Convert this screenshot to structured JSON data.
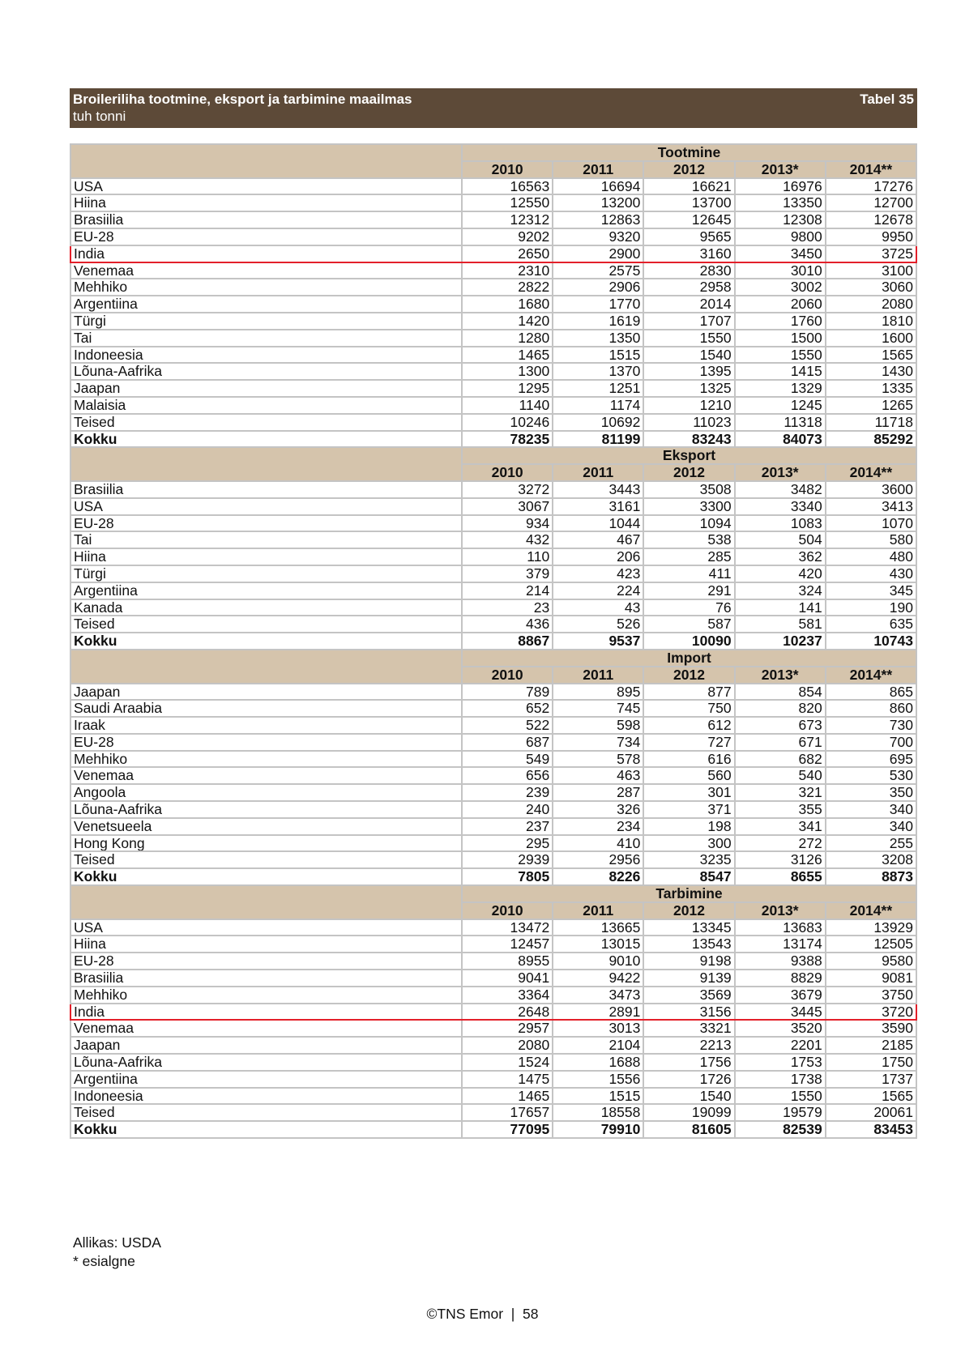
{
  "header": {
    "title": "Broileriliha tootmine, eksport ja tarbimine maailmas",
    "subtitle": "tuh tonni",
    "table_number": "Tabel 35"
  },
  "highlight_color": "#e3202a",
  "years": [
    "2010",
    "2011",
    "2012",
    "2013*",
    "2014**"
  ],
  "sections": [
    {
      "title": "Tootmine",
      "rows": [
        {
          "label": "USA",
          "values": [
            "16563",
            "16694",
            "16621",
            "16976",
            "17276"
          ]
        },
        {
          "label": "Hiina",
          "values": [
            "12550",
            "13200",
            "13700",
            "13350",
            "12700"
          ]
        },
        {
          "label": "Brasiilia",
          "values": [
            "12312",
            "12863",
            "12645",
            "12308",
            "12678"
          ]
        },
        {
          "label": "EU-28",
          "values": [
            "9202",
            "9320",
            "9565",
            "9800",
            "9950"
          ]
        },
        {
          "label": "India",
          "values": [
            "2650",
            "2900",
            "3160",
            "3450",
            "3725"
          ],
          "highlighted": true
        },
        {
          "label": "Venemaa",
          "values": [
            "2310",
            "2575",
            "2830",
            "3010",
            "3100"
          ]
        },
        {
          "label": "Mehhiko",
          "values": [
            "2822",
            "2906",
            "2958",
            "3002",
            "3060"
          ]
        },
        {
          "label": "Argentiina",
          "values": [
            "1680",
            "1770",
            "2014",
            "2060",
            "2080"
          ]
        },
        {
          "label": "Türgi",
          "values": [
            "1420",
            "1619",
            "1707",
            "1760",
            "1810"
          ]
        },
        {
          "label": "Tai",
          "values": [
            "1280",
            "1350",
            "1550",
            "1500",
            "1600"
          ]
        },
        {
          "label": "Indoneesia",
          "values": [
            "1465",
            "1515",
            "1540",
            "1550",
            "1565"
          ]
        },
        {
          "label": "Lõuna-Aafrika",
          "values": [
            "1300",
            "1370",
            "1395",
            "1415",
            "1430"
          ]
        },
        {
          "label": "Jaapan",
          "values": [
            "1295",
            "1251",
            "1325",
            "1329",
            "1335"
          ]
        },
        {
          "label": "Malaisia",
          "values": [
            "1140",
            "1174",
            "1210",
            "1245",
            "1265"
          ]
        },
        {
          "label": "Teised",
          "values": [
            "10246",
            "10692",
            "11023",
            "11318",
            "11718"
          ]
        },
        {
          "label": "Kokku",
          "values": [
            "78235",
            "81199",
            "83243",
            "84073",
            "85292"
          ],
          "total": true
        }
      ]
    },
    {
      "title": "Eksport",
      "rows": [
        {
          "label": "Brasiilia",
          "values": [
            "3272",
            "3443",
            "3508",
            "3482",
            "3600"
          ]
        },
        {
          "label": "USA",
          "values": [
            "3067",
            "3161",
            "3300",
            "3340",
            "3413"
          ]
        },
        {
          "label": "EU-28",
          "values": [
            "934",
            "1044",
            "1094",
            "1083",
            "1070"
          ]
        },
        {
          "label": "Tai",
          "values": [
            "432",
            "467",
            "538",
            "504",
            "580"
          ]
        },
        {
          "label": "Hiina",
          "values": [
            "110",
            "206",
            "285",
            "362",
            "480"
          ]
        },
        {
          "label": "Türgi",
          "values": [
            "379",
            "423",
            "411",
            "420",
            "430"
          ]
        },
        {
          "label": "Argentiina",
          "values": [
            "214",
            "224",
            "291",
            "324",
            "345"
          ]
        },
        {
          "label": "Kanada",
          "values": [
            "23",
            "43",
            "76",
            "141",
            "190"
          ]
        },
        {
          "label": "Teised",
          "values": [
            "436",
            "526",
            "587",
            "581",
            "635"
          ]
        },
        {
          "label": "Kokku",
          "values": [
            "8867",
            "9537",
            "10090",
            "10237",
            "10743"
          ],
          "total": true
        }
      ]
    },
    {
      "title": "Import",
      "rows": [
        {
          "label": "Jaapan",
          "values": [
            "789",
            "895",
            "877",
            "854",
            "865"
          ]
        },
        {
          "label": "Saudi Araabia",
          "values": [
            "652",
            "745",
            "750",
            "820",
            "860"
          ]
        },
        {
          "label": "Iraak",
          "values": [
            "522",
            "598",
            "612",
            "673",
            "730"
          ]
        },
        {
          "label": "EU-28",
          "values": [
            "687",
            "734",
            "727",
            "671",
            "700"
          ]
        },
        {
          "label": "Mehhiko",
          "values": [
            "549",
            "578",
            "616",
            "682",
            "695"
          ]
        },
        {
          "label": "Venemaa",
          "values": [
            "656",
            "463",
            "560",
            "540",
            "530"
          ]
        },
        {
          "label": "Angoola",
          "values": [
            "239",
            "287",
            "301",
            "321",
            "350"
          ]
        },
        {
          "label": "Lõuna-Aafrika",
          "values": [
            "240",
            "326",
            "371",
            "355",
            "340"
          ]
        },
        {
          "label": "Venetsueela",
          "values": [
            "237",
            "234",
            "198",
            "341",
            "340"
          ]
        },
        {
          "label": "Hong Kong",
          "values": [
            "295",
            "410",
            "300",
            "272",
            "255"
          ]
        },
        {
          "label": "Teised",
          "values": [
            "2939",
            "2956",
            "3235",
            "3126",
            "3208"
          ]
        },
        {
          "label": "Kokku",
          "values": [
            "7805",
            "8226",
            "8547",
            "8655",
            "8873"
          ],
          "total": true
        }
      ]
    },
    {
      "title": "Tarbimine",
      "rows": [
        {
          "label": "USA",
          "values": [
            "13472",
            "13665",
            "13345",
            "13683",
            "13929"
          ]
        },
        {
          "label": "Hiina",
          "values": [
            "12457",
            "13015",
            "13543",
            "13174",
            "12505"
          ]
        },
        {
          "label": "EU-28",
          "values": [
            "8955",
            "9010",
            "9198",
            "9388",
            "9580"
          ]
        },
        {
          "label": "Brasiilia",
          "values": [
            "9041",
            "9422",
            "9139",
            "8829",
            "9081"
          ]
        },
        {
          "label": "Mehhiko",
          "values": [
            "3364",
            "3473",
            "3569",
            "3679",
            "3750"
          ]
        },
        {
          "label": "India",
          "values": [
            "2648",
            "2891",
            "3156",
            "3445",
            "3720"
          ],
          "highlighted": true
        },
        {
          "label": "Venemaa",
          "values": [
            "2957",
            "3013",
            "3321",
            "3520",
            "3590"
          ]
        },
        {
          "label": "Jaapan",
          "values": [
            "2080",
            "2104",
            "2213",
            "2201",
            "2185"
          ]
        },
        {
          "label": "Lõuna-Aafrika",
          "values": [
            "1524",
            "1688",
            "1756",
            "1753",
            "1750"
          ]
        },
        {
          "label": "Argentiina",
          "values": [
            "1475",
            "1556",
            "1726",
            "1738",
            "1737"
          ]
        },
        {
          "label": "Indoneesia",
          "values": [
            "1465",
            "1515",
            "1540",
            "1550",
            "1565"
          ]
        },
        {
          "label": "Teised",
          "values": [
            "17657",
            "18558",
            "19099",
            "19579",
            "20061"
          ]
        },
        {
          "label": "Kokku",
          "values": [
            "77095",
            "79910",
            "81605",
            "82539",
            "83453"
          ],
          "total": true
        }
      ]
    }
  ],
  "footer": {
    "source": "Allikas: USDA",
    "note": "* esialgne",
    "page": "©TNS Emor  |  58"
  }
}
